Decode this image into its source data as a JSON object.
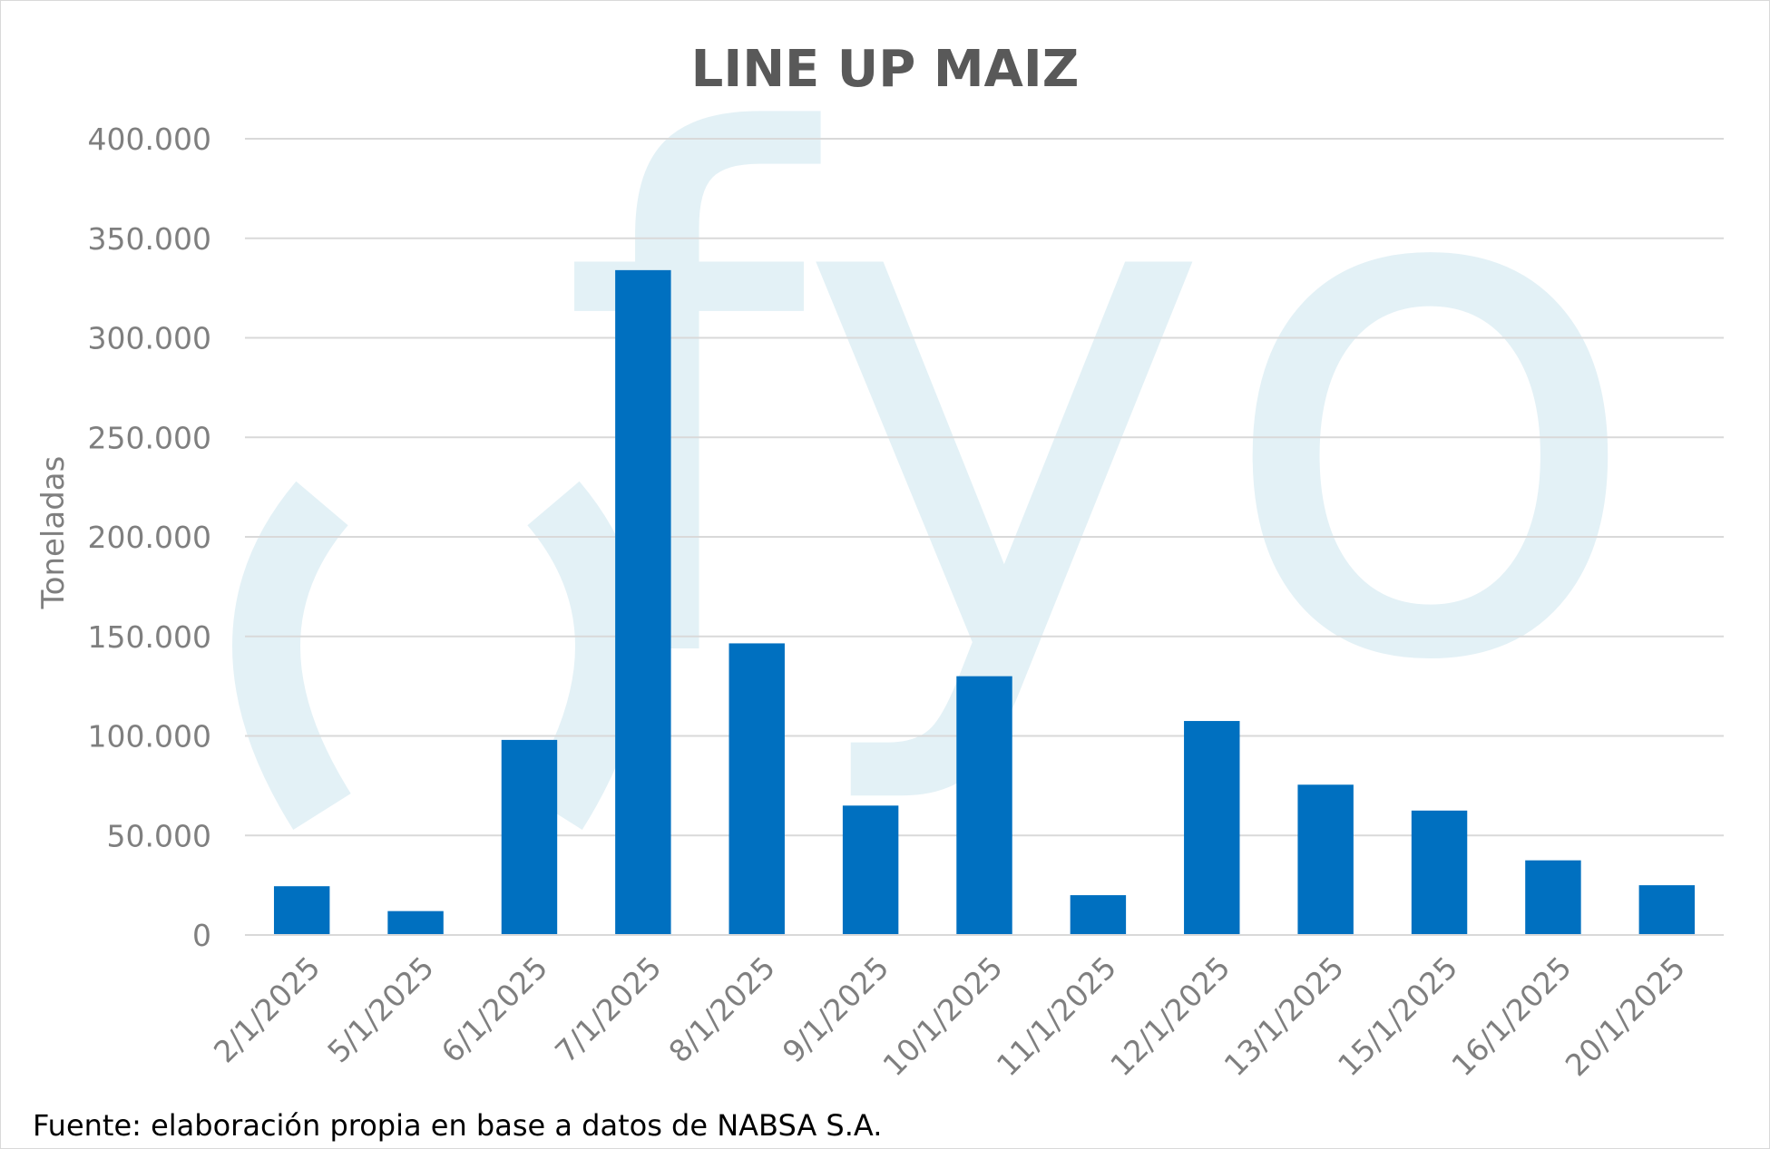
{
  "chart_data": {
    "type": "bar",
    "title": "LINE UP MAIZ",
    "xlabel": "",
    "ylabel": "Toneladas",
    "categories": [
      "2/1/2025",
      "5/1/2025",
      "6/1/2025",
      "7/1/2025",
      "8/1/2025",
      "9/1/2025",
      "10/1/2025",
      "11/1/2025",
      "12/1/2025",
      "13/1/2025",
      "15/1/2025",
      "16/1/2025",
      "20/1/2025"
    ],
    "values": [
      24500,
      12000,
      98000,
      334000,
      146500,
      65000,
      130000,
      20000,
      107500,
      75500,
      62500,
      37500,
      25000
    ],
    "ylim": [
      0,
      400000
    ],
    "yticks": [
      0,
      50000,
      100000,
      150000,
      200000,
      250000,
      300000,
      350000,
      400000
    ],
    "ytick_labels": [
      "0",
      "50.000",
      "100.000",
      "150.000",
      "200.000",
      "250.000",
      "300.000",
      "350.000",
      "400.000"
    ],
    "grid": true,
    "legend": "none",
    "bar_color": "#0070C0",
    "grid_color": "#d9d9d9"
  },
  "watermark": {
    "text": "fyo",
    "color": "#e3f1f6"
  },
  "footer": {
    "source": "Fuente: elaboración propia en base a datos de NABSA S.A."
  }
}
